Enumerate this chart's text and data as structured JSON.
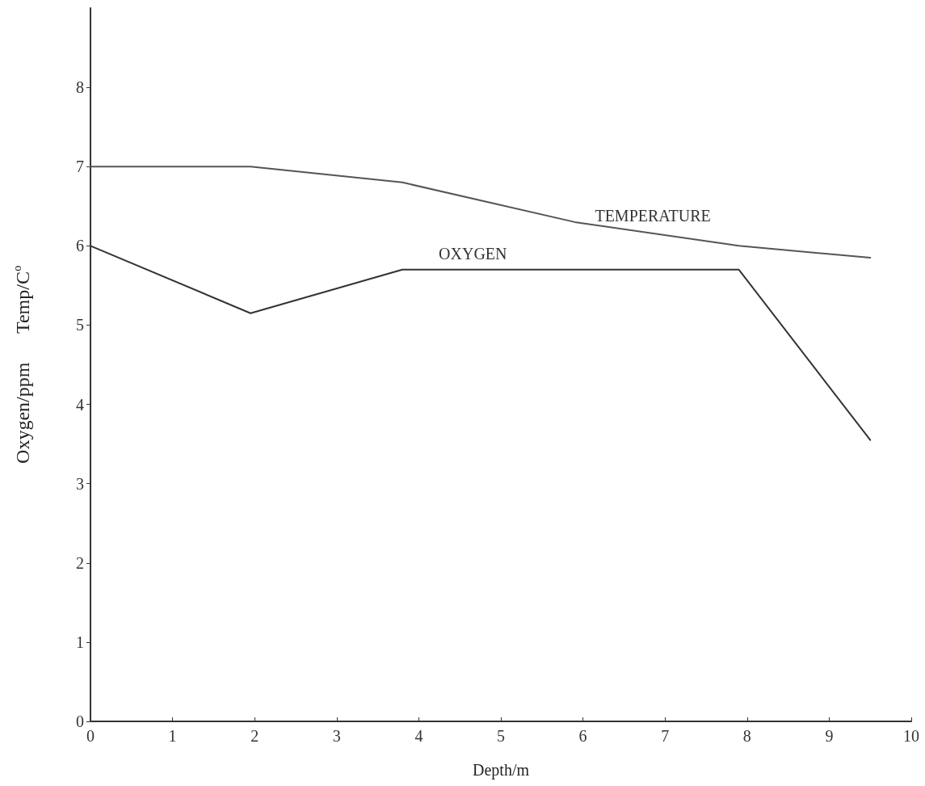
{
  "chart_data": {
    "type": "line",
    "xlabel": "Depth/m",
    "ylabel": "Oxygen/ppm      Temp/C$^{o}$",
    "x": [
      0,
      1.95,
      3.8,
      5.9,
      7.9,
      9.5
    ],
    "series": [
      {
        "name": "TEMPERATURE",
        "color": "#555555",
        "values": [
          7.0,
          7.0,
          6.8,
          6.3,
          6.0,
          5.85
        ]
      },
      {
        "name": "OXYGEN",
        "color": "#333333",
        "values": [
          6.0,
          5.15,
          5.7,
          null,
          5.7,
          3.55
        ]
      }
    ],
    "xlim": [
      0,
      10
    ],
    "xticks": [
      0,
      1,
      2,
      3,
      4,
      5,
      6,
      7,
      8,
      9,
      10
    ],
    "ylim": [
      0,
      9
    ],
    "yticks": [
      0,
      1,
      2,
      3,
      4,
      5,
      6,
      7,
      8
    ],
    "grid": false,
    "marker": "none",
    "line_style": "solid"
  }
}
